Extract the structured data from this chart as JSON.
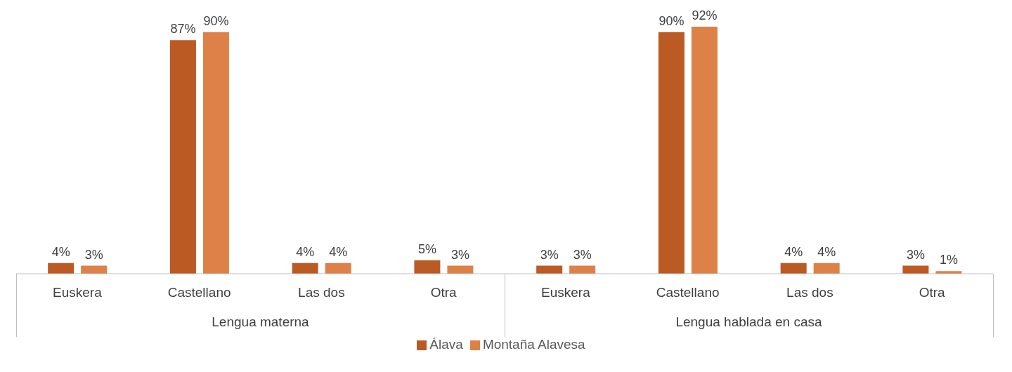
{
  "chart_data": {
    "type": "bar",
    "categories": [
      "Euskera",
      "Castellano",
      "Las dos",
      "Otra",
      "Euskera",
      "Castellano",
      "Las dos",
      "Otra"
    ],
    "series": [
      {
        "name": "Álava",
        "color": "#bc5a24",
        "values": [
          4,
          87,
          4,
          5,
          3,
          90,
          4,
          3
        ],
        "value_labels": [
          "4%",
          "87%",
          "4%",
          "5%",
          "3%",
          "90%",
          "4%",
          "3%"
        ]
      },
      {
        "name": "Montaña Alavesa",
        "color": "#de8148",
        "values": [
          3,
          90,
          4,
          3,
          3,
          92,
          4,
          1
        ],
        "value_labels": [
          "3%",
          "90%",
          "4%",
          "3%",
          "3%",
          "92%",
          "4%",
          "1%"
        ]
      }
    ],
    "annotations": [
      "Lengua materna",
      "Lengua hablada en casa"
    ],
    "legend": "bottom",
    "grid": false
  }
}
